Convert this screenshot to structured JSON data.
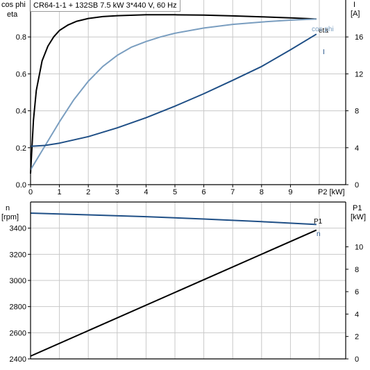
{
  "title": "CR64-1-1 + 132SB   7.5 kW   3*440 V, 60 Hz",
  "top_left_axis_label": [
    "cos phi",
    "eta"
  ],
  "top_right_axis_label": [
    "I",
    "[A]"
  ],
  "bottom_left_axis_label": [
    "n",
    "[rpm]"
  ],
  "bottom_right_axis_label": [
    "P1",
    "[kW]"
  ],
  "x_axis_label": "P2 [kW]",
  "colors": {
    "eta": "#000000",
    "cosphi": "#7a9ec0",
    "I": "#1f4f86",
    "n": "#1f4f86",
    "P1": "#000000",
    "grid": "#c8c8c8",
    "axis": "#000000"
  },
  "chart_data": [
    {
      "type": "line",
      "xlabel": "P2 [kW]",
      "ylabel": "cos phi / eta",
      "ylabel_right": "I [A]",
      "xlim": [
        0,
        10
      ],
      "ylim": [
        0,
        1.0
      ],
      "ylim_right": [
        0,
        20
      ],
      "xticks": [
        "0",
        "1",
        "2",
        "3",
        "4",
        "5",
        "6",
        "7",
        "8",
        "9"
      ],
      "yticks_left": [
        "0.0",
        "0.2",
        "0.4",
        "0.6",
        "0.8"
      ],
      "yticks_right": [
        "0",
        "4",
        "8",
        "12",
        "16"
      ],
      "grid": true,
      "series": [
        {
          "name": "eta",
          "axis": "left",
          "color": "#000000",
          "x": [
            0,
            0.1,
            0.2,
            0.4,
            0.6,
            0.8,
            1.0,
            1.3,
            1.6,
            2.0,
            2.5,
            3.0,
            4.0,
            5.0,
            6.0,
            7.0,
            8.0,
            9.0,
            9.9
          ],
          "y": [
            0.06,
            0.35,
            0.51,
            0.67,
            0.75,
            0.8,
            0.835,
            0.865,
            0.885,
            0.9,
            0.91,
            0.915,
            0.92,
            0.92,
            0.918,
            0.914,
            0.909,
            0.903,
            0.897
          ]
        },
        {
          "name": "cos phi",
          "axis": "left",
          "color": "#7a9ec0",
          "x": [
            0,
            0.5,
            1.0,
            1.5,
            2.0,
            2.5,
            3.0,
            3.5,
            4.0,
            4.5,
            5.0,
            6.0,
            7.0,
            8.0,
            9.0,
            9.9
          ],
          "y": [
            0.08,
            0.21,
            0.34,
            0.46,
            0.56,
            0.64,
            0.7,
            0.745,
            0.775,
            0.8,
            0.82,
            0.848,
            0.868,
            0.881,
            0.891,
            0.897
          ]
        },
        {
          "name": "I",
          "axis": "right",
          "color": "#1f4f86",
          "x": [
            0,
            0.5,
            1.0,
            2.0,
            3.0,
            4.0,
            5.0,
            6.0,
            7.0,
            8.0,
            9.0,
            9.9
          ],
          "y": [
            4.15,
            4.25,
            4.5,
            5.2,
            6.15,
            7.25,
            8.5,
            9.85,
            11.3,
            12.8,
            14.6,
            16.3
          ]
        }
      ]
    },
    {
      "type": "line",
      "xlabel": "",
      "ylabel": "n [rpm]",
      "ylabel_right": "P1 [kW]",
      "xlim": [
        0,
        10
      ],
      "ylim": [
        2400,
        3600
      ],
      "ylim_right": [
        0,
        14
      ],
      "yticks_left": [
        "2400",
        "2600",
        "2800",
        "3000",
        "3200",
        "3400"
      ],
      "yticks_right": [
        "0",
        "2",
        "4",
        "6",
        "8",
        "10"
      ],
      "grid": true,
      "series": [
        {
          "name": "n",
          "axis": "left",
          "color": "#1f4f86",
          "x": [
            0,
            2,
            4,
            6,
            8,
            9.9
          ],
          "y": [
            3515,
            3502,
            3488,
            3470,
            3450,
            3428
          ]
        },
        {
          "name": "P1",
          "axis": "right",
          "color": "#000000",
          "x": [
            0,
            9.9
          ],
          "y": [
            0.25,
            11.5
          ]
        }
      ]
    }
  ]
}
